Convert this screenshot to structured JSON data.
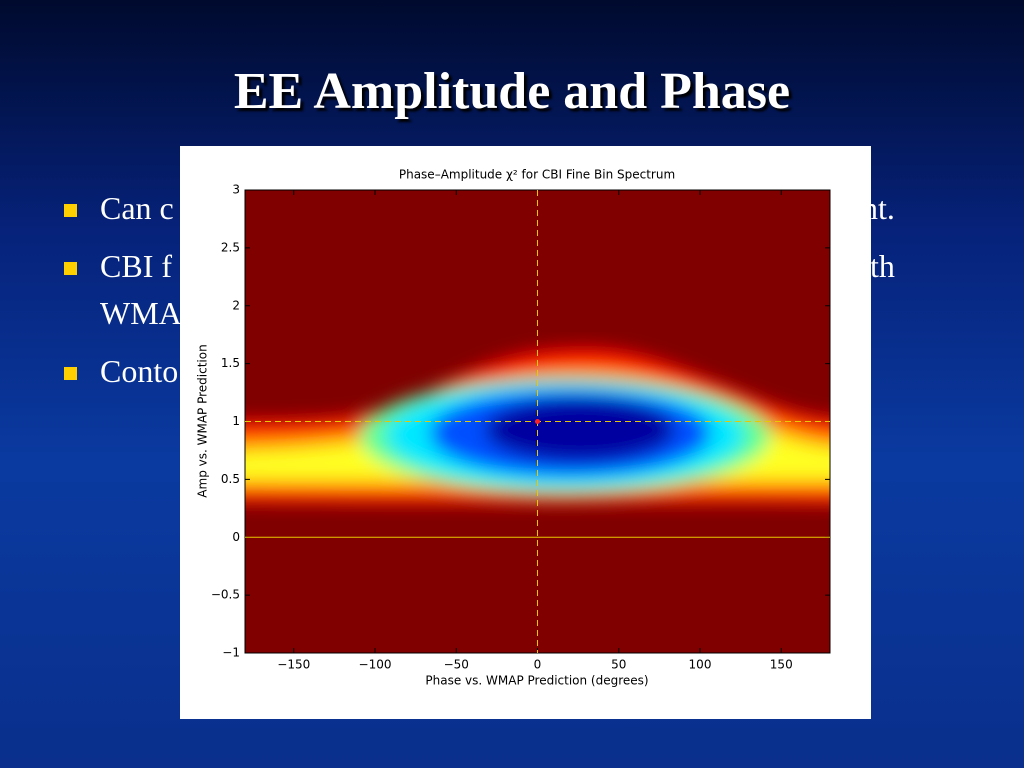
{
  "slide": {
    "title": "EE Amplitude and Phase",
    "bullets": [
      [
        "Can c",
        "nt."
      ],
      [
        "CBI f",
        "th",
        "WMA"
      ],
      [
        "Conto"
      ]
    ]
  },
  "chart_data": {
    "type": "contour",
    "title": "Phase–Amplitude χ² for CBI Fine Bin Spectrum",
    "xlabel": "Phase vs. WMAP Prediction (degrees)",
    "ylabel": "Amp vs. WMAP Prediction",
    "xlim": [
      -180,
      180
    ],
    "xticks": [
      {
        "value": -150,
        "label": "−150"
      },
      {
        "value": -100,
        "label": "−100"
      },
      {
        "value": -50,
        "label": "−50"
      },
      0,
      50,
      100,
      150
    ],
    "ylim": [
      -1,
      3
    ],
    "yticks": [
      {
        "value": -1,
        "label": "−1"
      },
      {
        "value": -0.5,
        "label": "−0.5"
      },
      0,
      0.5,
      1,
      1.5,
      2,
      2.5,
      3
    ],
    "crosshair": {
      "x": 0,
      "y": 1
    },
    "zero_line": 0
  }
}
